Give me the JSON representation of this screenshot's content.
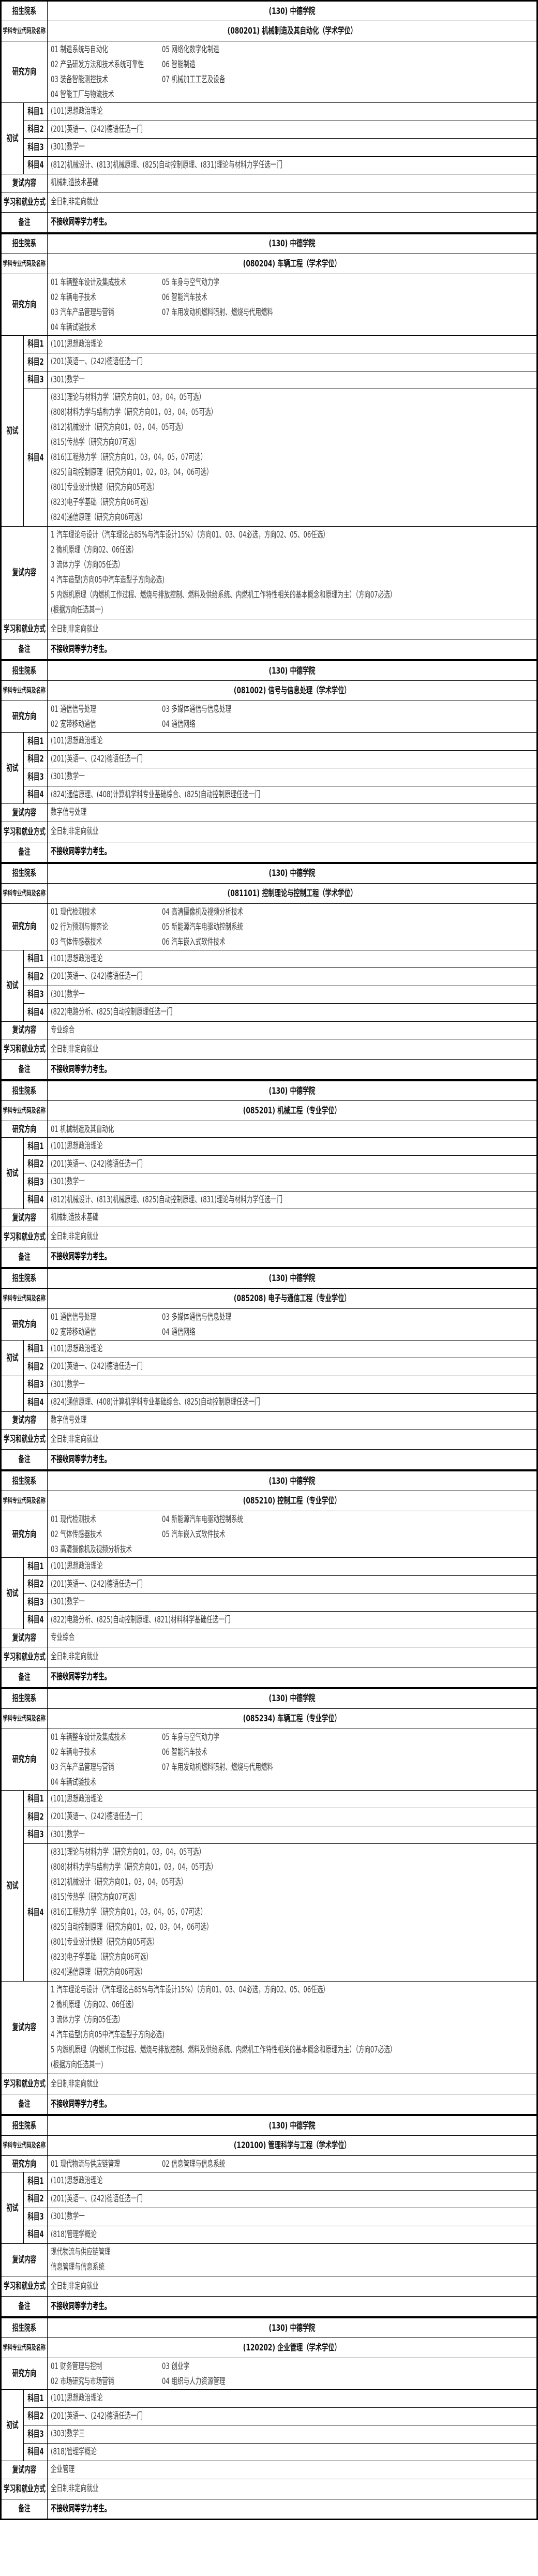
{
  "labels": {
    "college": "招生院系",
    "major": "学科专业代码及名称",
    "directions": "研究方向",
    "exam": "初试",
    "subjects": [
      "科目1",
      "科目2",
      "科目3",
      "科目4"
    ],
    "retest": "复试内容",
    "mode": "学习和就业方式",
    "note": "备注"
  },
  "programs": [
    {
      "college": "(130) 中德学院",
      "major": "(080201) 机械制造及其自动化（学术学位）",
      "directions": [
        [
          "01 制造系统与自动化",
          "02 产品研发方法和技术系统可靠性",
          "03 装备智能测控技术",
          "04 智能工厂与物流技术"
        ],
        [
          "05 网络化数字化制造",
          "06 智能制造",
          "07 机械加工工艺及设备"
        ]
      ],
      "exam": [
        [
          "(101)思想政治理论"
        ],
        [
          "(201)英语一、(242)德语任选一门"
        ],
        [
          "(301)数学一"
        ],
        [
          "(812)机械设计、(813)机械原理、(825)自动控制原理、(831)理论与材料力学任选一门"
        ]
      ],
      "retest": [
        "机械制造技术基础"
      ],
      "mode": "全日制非定向就业",
      "note": "不接收同等学力考生。"
    },
    {
      "college": "(130) 中德学院",
      "major": "(080204) 车辆工程（学术学位）",
      "directions": [
        [
          "01 车辆整车设计及集成技术",
          "02 车辆电子技术",
          "03 汽车产品管理与营销",
          "04 车辆试验技术"
        ],
        [
          "05 车身与空气动力学",
          "06 智能汽车技术",
          "07 车用发动机燃料喷射、燃烧与代用燃料"
        ]
      ],
      "exam": [
        [
          "(101)思想政治理论"
        ],
        [
          "(201)英语一、(242)德语任选一门"
        ],
        [
          "(301)数学一"
        ],
        [
          "(831)理论与材料力学（研究方向01，03，04，05可选）",
          "(808)材料力学与结构力学（研究方向01，03，04，05可选）",
          "(812)机械设计（研究方向01，03，04，05可选）",
          "(815)传热学（研究方向07可选）",
          "(816)工程热力学（研究方向01，03，04，05，07可选）",
          "(825)自动控制原理（研究方向01，02，03，04，06可选）",
          "(801)专业设计快题（研究方向05可选）",
          "(823)电子学基础（研究方向06可选）",
          "(824)通信原理（研究方向06可选）"
        ]
      ],
      "retest": [
        "1 汽车理论与设计（汽车理论占85%与汽车设计15%）（方向01、03、04必选，方向02、05、06任选）",
        "2 微机原理（方向02、06任选）",
        "3 流体力学（方向05任选）",
        "4  汽车造型(方向05中汽车造型子方向必选)",
        "5 内燃机原理（内燃机工作过程、燃烧与排放控制、燃料及供给系统、内燃机工作特性相关的基本概念和原理为主）（方向07必选）",
        "(根据方向任选其一)"
      ],
      "mode": "全日制非定向就业",
      "note": "不接收同等学力考生。"
    },
    {
      "college": "(130) 中德学院",
      "major": "(081002) 信号与信息处理（学术学位）",
      "directions": [
        [
          "01 通信信号处理",
          "02 宽带移动通信"
        ],
        [
          "03 多媒体通信与信息处理",
          "04 通信网络"
        ]
      ],
      "exam": [
        [
          "(101)思想政治理论"
        ],
        [
          "(201)英语一、(242)德语任选一门"
        ],
        [
          "(301)数学一"
        ],
        [
          "(824)通信原理、(408)计算机学科专业基础综合、(825)自动控制原理任选一门"
        ]
      ],
      "retest": [
        "数字信号处理"
      ],
      "mode": "全日制非定向就业",
      "note": "不接收同等学力考生。"
    },
    {
      "college": "(130) 中德学院",
      "major": "(081101) 控制理论与控制工程（学术学位）",
      "directions": [
        [
          "01 现代检测技术",
          "02 行为预测与博弈论",
          "03 气体传感器技术"
        ],
        [
          "04 高清摄像机及视频分析技术",
          "05 新能源汽车电驱动控制系统",
          "06 汽车嵌入式软件技术"
        ]
      ],
      "exam": [
        [
          "(101)思想政治理论"
        ],
        [
          "(201)英语一、(242)德语任选一门"
        ],
        [
          "(301)数学一"
        ],
        [
          "(822)电路分析、(825)自动控制原理任选一门"
        ]
      ],
      "retest": [
        "专业综合"
      ],
      "mode": "全日制非定向就业",
      "note": "不接收同等学力考生。"
    },
    {
      "college": "(130) 中德学院",
      "major": "(085201) 机械工程（专业学位）",
      "directions": [
        [
          "01 机械制造及其自动化"
        ],
        []
      ],
      "exam": [
        [
          "(101)思想政治理论"
        ],
        [
          "(201)英语一、(242)德语任选一门"
        ],
        [
          "(301)数学一"
        ],
        [
          "(812)机械设计、(813)机械原理、(825)自动控制原理、(831)理论与材料力学任选一门"
        ]
      ],
      "retest": [
        "机械制造技术基础"
      ],
      "mode": "全日制非定向就业",
      "note": "不接收同等学力考生。"
    },
    {
      "college": "(130) 中德学院",
      "major": "(085208) 电子与通信工程（专业学位）",
      "directions": [
        [
          "01 通信信号处理",
          "02 宽带移动通信"
        ],
        [
          "03 多媒体通信与信息处理",
          "04 通信网络"
        ]
      ],
      "exam": [
        [
          "(101)思想政治理论"
        ],
        [
          "(201)英语一、(242)德语任选一门"
        ],
        [
          "(301)数学一"
        ],
        [
          "(824)通信原理、(408)计算机学科专业基础综合、(825)自动控制原理任选一门"
        ]
      ],
      "exam_split": true,
      "retest": [
        "数字信号处理"
      ],
      "mode": "全日制非定向就业",
      "note": "不接收同等学力考生。"
    },
    {
      "college": "(130) 中德学院",
      "major": "(085210) 控制工程（专业学位）",
      "directions": [
        [
          "01 现代检测技术",
          "02 气体传感器技术",
          "03 高清摄像机及视频分析技术"
        ],
        [
          "04 新能源汽车电驱动控制系统",
          "05 汽车嵌入式软件技术"
        ]
      ],
      "exam": [
        [
          "(101)思想政治理论"
        ],
        [
          "(201)英语一、(242)德语任选一门"
        ],
        [
          "(301)数学一"
        ],
        [
          "(822)电路分析、(825)自动控制原理、(821)材料科学基础任选一门"
        ]
      ],
      "retest": [
        "专业综合"
      ],
      "mode": "全日制非定向就业",
      "note": "不接收同等学力考生。"
    },
    {
      "college": "(130) 中德学院",
      "major": "(085234) 车辆工程（专业学位）",
      "directions": [
        [
          "01 车辆整车设计及集成技术",
          "02 车辆电子技术",
          "03 汽车产品管理与营销",
          "04 车辆试验技术"
        ],
        [
          "05 车身与空气动力学",
          "06 智能汽车技术",
          "07 车用发动机燃料喷射、燃烧与代用燃料"
        ]
      ],
      "exam": [
        [
          "(101)思想政治理论"
        ],
        [
          "(201)英语一、(242)德语任选一门"
        ],
        [
          "(301)数学一"
        ],
        [
          "(831)理论与材料力学（研究方向01，03，04，05可选）",
          "(808)材料力学与结构力学（研究方向01，03，04，05可选）",
          "(812)机械设计（研究方向01，03，04，05可选）",
          "(815)传热学（研究方向07可选）",
          "(816)工程热力学（研究方向01，03，04，05，07可选）",
          "(825)自动控制原理（研究方向01，02，03，04，06可选）",
          "(801)专业设计快题（研究方向05可选）",
          "(823)电子学基础（研究方向06可选）",
          "(824)通信原理（研究方向06可选）"
        ]
      ],
      "retest": [
        "1 汽车理论与设计（汽车理论占85%与汽车设计15%）（方向01、03、04必选，方向02、05、06任选）",
        "2 微机原理（方向02、06任选）",
        "3 流体力学（方向05任选）",
        "4  汽车造型(方向05中汽车造型子方向必选)",
        "5 内燃机原理（内燃机工作过程、燃烧与排放控制、燃料及供给系统、内燃机工作特性相关的基本概念和原理为主）（方向07必选）",
        "(根据方向任选其一)"
      ],
      "mode": "全日制非定向就业",
      "note": "不接收同等学力考生。"
    },
    {
      "college": "(130) 中德学院",
      "major": "(120100) 管理科学与工程（学术学位）",
      "directions": [
        [
          "01 现代物流与供应链管理"
        ],
        [
          "02 信息管理与信息系统"
        ]
      ],
      "exam": [
        [
          "(101)思想政治理论"
        ],
        [
          "(201)英语一、(242)德语任选一门"
        ],
        [
          "(301)数学一"
        ],
        [
          "(818)管理学概论"
        ]
      ],
      "retest": [
        "现代物流与供应链管理",
        "信息管理与信息系统"
      ],
      "mode": "全日制非定向就业",
      "note": "不接收同等学力考生。"
    },
    {
      "college": "(130) 中德学院",
      "major": "(120202) 企业管理（学术学位）",
      "directions": [
        [
          "01 财务管理与控制",
          "02 市场研究与市场营销"
        ],
        [
          "03 创业学",
          "04 组织与人力资源管理"
        ]
      ],
      "exam": [
        [
          "(101)思想政治理论"
        ],
        [
          "(201)英语一、(242)德语任选一门"
        ],
        [
          "(303)数学三"
        ],
        [
          "(818)管理学概论"
        ]
      ],
      "retest": [
        "企业管理"
      ],
      "mode": "全日制非定向就业",
      "note": "不接收同等学力考生。"
    }
  ]
}
